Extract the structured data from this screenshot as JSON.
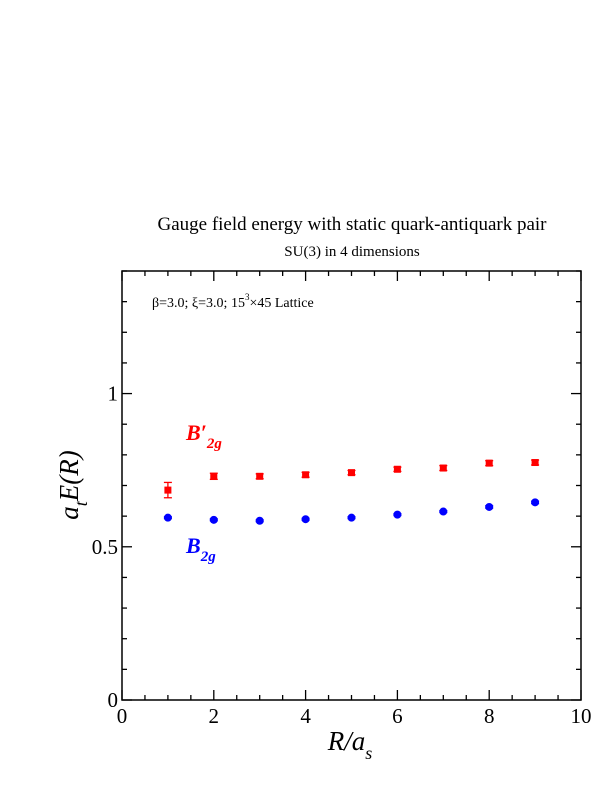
{
  "chart_data": {
    "type": "scatter",
    "title": "Gauge field energy with static quark-antiquark pair",
    "subtitle": "SU(3) in 4 dimensions",
    "annotation": {
      "beta": "β=3.0;",
      "xi": "ξ=3.0;",
      "lattice_base": "15",
      "lattice_exp": "3",
      "lattice_rest": "×45 Lattice"
    },
    "xlabel": {
      "main": "R/a",
      "sub": "s"
    },
    "ylabel": {
      "pre": "a",
      "sub": "t",
      "main": "E(R)"
    },
    "xlim": [
      0,
      10
    ],
    "ylim": [
      0,
      1.4
    ],
    "xticks": [
      0,
      2,
      4,
      6,
      8,
      10
    ],
    "yticks": [
      0,
      0.5,
      1
    ],
    "xtick_labels": [
      "0",
      "2",
      "4",
      "6",
      "8",
      "10"
    ],
    "ytick_labels": [
      "0",
      "0.5",
      "1"
    ],
    "series": [
      {
        "name": "B′2g",
        "label_main": "B′",
        "label_sub": "2g",
        "color": "#ff0000",
        "marker": "square",
        "x": [
          1,
          2,
          3,
          4,
          5,
          6,
          7,
          8,
          9
        ],
        "y": [
          0.685,
          0.73,
          0.73,
          0.735,
          0.742,
          0.753,
          0.757,
          0.773,
          0.775
        ],
        "err": [
          0.025,
          0.01,
          0.008,
          0.008,
          0.007,
          0.007,
          0.008,
          0.008,
          0.008
        ]
      },
      {
        "name": "B2g",
        "label_main": "B",
        "label_sub": "2g",
        "color": "#0000ff",
        "marker": "circle",
        "x": [
          1,
          2,
          3,
          4,
          5,
          6,
          7,
          8,
          9
        ],
        "y": [
          0.595,
          0.588,
          0.585,
          0.59,
          0.595,
          0.605,
          0.615,
          0.63,
          0.645
        ],
        "err": [
          0.003,
          0.003,
          0.003,
          0.003,
          0.003,
          0.003,
          0.003,
          0.004,
          0.004
        ]
      }
    ]
  }
}
